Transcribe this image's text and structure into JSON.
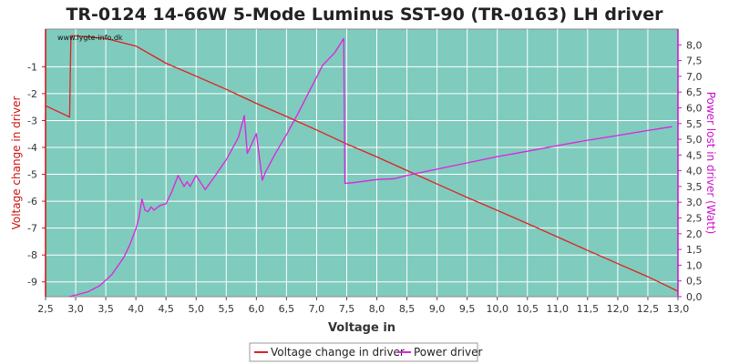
{
  "chart_data": {
    "type": "line",
    "title": "TR-0124 14-66W 5-Mode Luminus SST-90 (TR-0163) LH driver",
    "xlabel": "Voltage in",
    "ylabel_left": "Voltage change in driver",
    "ylabel_right": "Power lost in driver (Watt)",
    "watermark": "www.lygte-info.dk",
    "xlim": [
      2.5,
      13.0
    ],
    "ylim_left": [
      -9.55,
      0.4
    ],
    "ylim_right": [
      0.0,
      8.5
    ],
    "x_ticks": [
      "2,5",
      "3,0",
      "3,5",
      "4,0",
      "4,5",
      "5,0",
      "5,5",
      "6,0",
      "6,5",
      "7,0",
      "7,5",
      "8,0",
      "8,5",
      "9,0",
      "9,5",
      "10,0",
      "10,5",
      "11,0",
      "11,5",
      "12,0",
      "12,5",
      "13,0"
    ],
    "y_left_ticks": [
      "-1",
      "-2",
      "-3",
      "-4",
      "-5",
      "-6",
      "-7",
      "-8",
      "-9"
    ],
    "y_right_ticks": [
      "0,0",
      "0,5",
      "1,0",
      "1,5",
      "2,0",
      "2,5",
      "3,0",
      "3,5",
      "4,0",
      "4,5",
      "5,0",
      "5,5",
      "6,0",
      "6,5",
      "7,0",
      "7,5",
      "8,0"
    ],
    "grid": true,
    "legend_position": "bottom-center",
    "colors": {
      "plot_bg": "#7fcbbd",
      "grid": "#ffffff",
      "voltage_series": "#e02020",
      "power_series": "#e020e0",
      "left_axis": "#cc1111",
      "right_axis": "#cc11cc"
    },
    "series": [
      {
        "name": "Voltage change in driver",
        "axis": "left",
        "x": [
          2.5,
          2.9,
          2.92,
          3.0,
          3.5,
          4.0,
          4.5,
          5.0,
          5.5,
          6.0,
          6.5,
          7.0,
          7.5,
          8.0,
          8.5,
          9.0,
          9.5,
          10.0,
          10.5,
          11.0,
          11.5,
          12.0,
          12.5,
          13.0
        ],
        "y": [
          -2.45,
          -2.87,
          0.15,
          0.15,
          0.05,
          -0.23,
          -0.87,
          -1.35,
          -1.84,
          -2.36,
          -2.85,
          -3.35,
          -3.87,
          -4.35,
          -4.86,
          -5.36,
          -5.86,
          -6.34,
          -6.83,
          -7.33,
          -7.83,
          -8.32,
          -8.81,
          -9.35
        ]
      },
      {
        "name": "Power driver",
        "axis": "right",
        "x": [
          2.9,
          3.0,
          3.2,
          3.4,
          3.6,
          3.8,
          3.9,
          4.0,
          4.05,
          4.1,
          4.15,
          4.2,
          4.25,
          4.3,
          4.4,
          4.5,
          4.6,
          4.7,
          4.8,
          4.85,
          4.9,
          5.0,
          5.1,
          5.15,
          5.3,
          5.5,
          5.7,
          5.8,
          5.85,
          5.9,
          6.0,
          6.1,
          6.15,
          6.3,
          6.5,
          6.7,
          6.9,
          7.1,
          7.3,
          7.45,
          7.47,
          7.6,
          8.0,
          8.3,
          8.5,
          9.0,
          9.5,
          10.0,
          10.5,
          11.0,
          11.5,
          12.0,
          12.5,
          12.9
        ],
        "y": [
          0.0,
          0.05,
          0.15,
          0.35,
          0.7,
          1.25,
          1.65,
          2.15,
          2.5,
          3.1,
          2.75,
          2.7,
          2.85,
          2.75,
          2.9,
          2.95,
          3.35,
          3.85,
          3.5,
          3.65,
          3.5,
          3.85,
          3.55,
          3.4,
          3.8,
          4.35,
          5.05,
          5.75,
          4.55,
          4.75,
          5.18,
          3.7,
          3.95,
          4.5,
          5.15,
          5.85,
          6.6,
          7.35,
          7.75,
          8.2,
          3.6,
          3.62,
          3.72,
          3.75,
          3.85,
          4.05,
          4.25,
          4.45,
          4.62,
          4.8,
          4.97,
          5.12,
          5.28,
          5.4
        ]
      }
    ]
  }
}
